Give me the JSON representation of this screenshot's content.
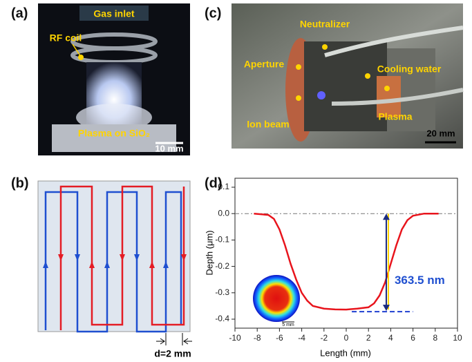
{
  "panels": {
    "a": {
      "label": "(a)",
      "texts": [
        "Gas inlet",
        "RF coil",
        "Plasma on SiO₂"
      ],
      "scale": "10 mm"
    },
    "b": {
      "label": "(b)",
      "spacing": "d=2 mm"
    },
    "c": {
      "label": "(c)",
      "texts": [
        "Neutralizer",
        "Aperture",
        "Cooling water",
        "Plasma",
        "Ion beam"
      ],
      "scale": "20 mm"
    },
    "d": {
      "label": "(d)"
    }
  },
  "chart_data": {
    "type": "line",
    "xlabel": "Length (mm)",
    "ylabel": "Depth (μm)",
    "x": [
      -8.3,
      -7,
      -6.5,
      -6,
      -5.5,
      -5,
      -4.5,
      -4,
      -3.5,
      -3,
      -2,
      -1,
      0,
      1,
      2,
      2.5,
      3,
      3.5,
      4,
      4.5,
      5,
      5.5,
      6,
      7,
      8.3
    ],
    "values": [
      0,
      -0.005,
      -0.02,
      -0.06,
      -0.12,
      -0.19,
      -0.25,
      -0.3,
      -0.33,
      -0.35,
      -0.36,
      -0.363,
      -0.3635,
      -0.36,
      -0.355,
      -0.34,
      -0.31,
      -0.26,
      -0.19,
      -0.12,
      -0.06,
      -0.025,
      -0.008,
      0,
      0
    ],
    "color": "#e8141c",
    "xlim": [
      -10,
      10
    ],
    "xticks": [
      -10,
      -8,
      -6,
      -4,
      -2,
      0,
      2,
      4,
      6,
      8,
      10
    ],
    "ylim": [
      -0.434,
      0.134
    ],
    "yticks": [
      0.1,
      {
        "value": 0,
        "label": "0.0"
      },
      -0.1,
      -0.2,
      -0.3,
      -0.4
    ],
    "annotation": "363.5 nm",
    "inset_scale": "5 mm"
  }
}
